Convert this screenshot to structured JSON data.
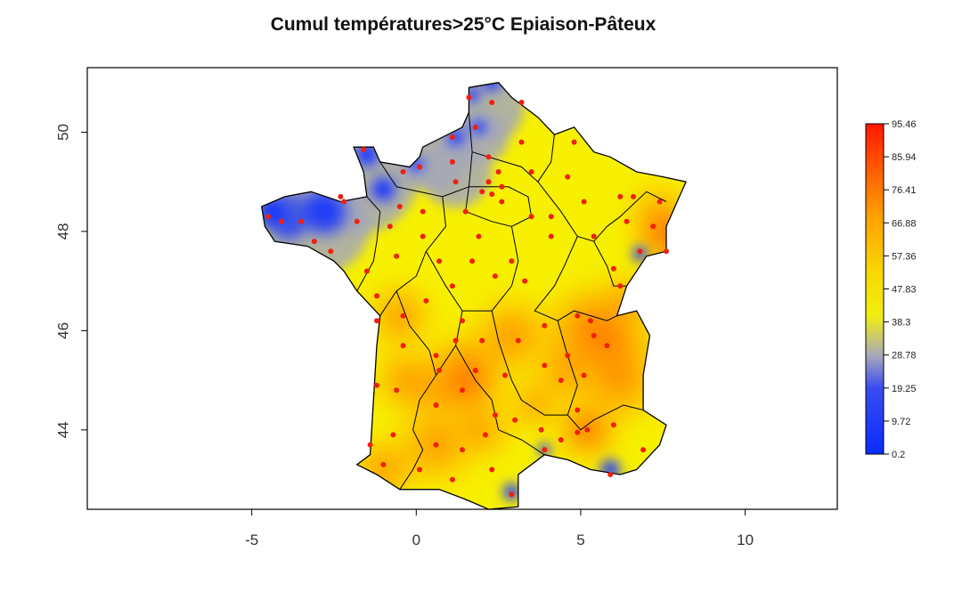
{
  "title": "Cumul températures>25°C Epiaison-Pâteux",
  "axes": {
    "xlim": [
      -10,
      12.8
    ],
    "ylim": [
      42.4,
      51.3
    ],
    "x_ticks": [
      -5,
      0,
      5,
      10
    ],
    "y_ticks": [
      44,
      46,
      48,
      50
    ],
    "x_tick_labels": [
      "-5",
      "0",
      "5",
      "10"
    ],
    "y_tick_labels": [
      "44",
      "46",
      "48",
      "50"
    ]
  },
  "legend": {
    "labels": [
      "95.46",
      "85.94",
      "76.41",
      "66.88",
      "57.36",
      "47.83",
      "38.3",
      "28.78",
      "19.25",
      "9.72",
      "0.2"
    ],
    "colors": {
      "low": "#1030ff",
      "mid_low": "#a0a8c0",
      "mid": "#f5f000",
      "mid_high": "#ff9000",
      "high": "#ff1000"
    }
  },
  "chart_data": {
    "type": "heatmap",
    "title": "Cumul températures>25°C Epiaison-Pâteux",
    "region": "France",
    "value_range": [
      0.2,
      95.46
    ],
    "stations": [
      [
        2.3,
        50.6
      ],
      [
        3.2,
        50.6
      ],
      [
        1.6,
        50.7
      ],
      [
        1.8,
        50.1
      ],
      [
        1.1,
        49.9
      ],
      [
        3.2,
        49.8
      ],
      [
        4.8,
        49.8
      ],
      [
        2.2,
        49.5
      ],
      [
        1.1,
        49.4
      ],
      [
        2.5,
        49.2
      ],
      [
        1.2,
        49.0
      ],
      [
        2.2,
        49.0
      ],
      [
        2.6,
        48.9
      ],
      [
        3.5,
        48.3
      ],
      [
        2.0,
        48.8
      ],
      [
        2.3,
        48.75
      ],
      [
        2.6,
        48.6
      ],
      [
        1.5,
        48.4
      ],
      [
        4.1,
        48.3
      ],
      [
        5.1,
        48.6
      ],
      [
        6.2,
        48.7
      ],
      [
        6.6,
        48.7
      ],
      [
        7.4,
        48.6
      ],
      [
        4.6,
        49.1
      ],
      [
        3.5,
        49.2
      ],
      [
        7.2,
        48.1
      ],
      [
        7.6,
        47.6
      ],
      [
        6.8,
        47.6
      ],
      [
        6.0,
        47.25
      ],
      [
        6.2,
        46.9
      ],
      [
        5.4,
        47.9
      ],
      [
        6.4,
        48.2
      ],
      [
        4.1,
        47.9
      ],
      [
        2.4,
        47.1
      ],
      [
        3.3,
        47.0
      ],
      [
        2.9,
        47.4
      ],
      [
        1.9,
        47.9
      ],
      [
        1.7,
        47.4
      ],
      [
        0.7,
        47.4
      ],
      [
        0.2,
        47.9
      ],
      [
        -0.6,
        47.5
      ],
      [
        -1.5,
        47.2
      ],
      [
        -1.2,
        46.7
      ],
      [
        -0.4,
        46.3
      ],
      [
        0.3,
        46.6
      ],
      [
        1.1,
        46.9
      ],
      [
        -1.8,
        48.2
      ],
      [
        -0.8,
        48.1
      ],
      [
        0.2,
        48.4
      ],
      [
        -0.5,
        48.5
      ],
      [
        -2.3,
        48.7
      ],
      [
        -3.5,
        48.2
      ],
      [
        -4.1,
        48.2
      ],
      [
        -4.5,
        48.3
      ],
      [
        -3.1,
        47.8
      ],
      [
        -2.6,
        47.6
      ],
      [
        -0.4,
        49.2
      ],
      [
        0.1,
        49.3
      ],
      [
        -1.6,
        49.65
      ],
      [
        -2.2,
        48.6
      ],
      [
        -1.2,
        46.2
      ],
      [
        -0.4,
        45.7
      ],
      [
        -1.2,
        44.9
      ],
      [
        -0.6,
        44.8
      ],
      [
        0.7,
        45.2
      ],
      [
        1.2,
        45.8
      ],
      [
        2.0,
        45.8
      ],
      [
        3.1,
        45.8
      ],
      [
        3.9,
        46.1
      ],
      [
        4.9,
        46.3
      ],
      [
        5.3,
        46.2
      ],
      [
        5.4,
        45.9
      ],
      [
        5.8,
        45.7
      ],
      [
        5.1,
        45.1
      ],
      [
        4.6,
        45.5
      ],
      [
        4.4,
        45.0
      ],
      [
        3.9,
        45.3
      ],
      [
        2.7,
        45.1
      ],
      [
        1.8,
        45.2
      ],
      [
        1.4,
        44.8
      ],
      [
        0.6,
        44.5
      ],
      [
        -0.7,
        43.9
      ],
      [
        -1.4,
        43.7
      ],
      [
        -1.0,
        43.3
      ],
      [
        0.1,
        43.2
      ],
      [
        0.6,
        43.7
      ],
      [
        1.4,
        43.6
      ],
      [
        2.1,
        43.9
      ],
      [
        2.4,
        44.3
      ],
      [
        3.0,
        44.2
      ],
      [
        3.8,
        44.0
      ],
      [
        4.4,
        43.8
      ],
      [
        4.9,
        43.95
      ],
      [
        5.2,
        44.0
      ],
      [
        5.9,
        43.1
      ],
      [
        6.9,
        43.6
      ],
      [
        2.3,
        43.2
      ],
      [
        1.1,
        43.0
      ],
      [
        2.9,
        42.7
      ],
      [
        3.9,
        43.6
      ],
      [
        4.9,
        44.4
      ],
      [
        6.0,
        44.1
      ],
      [
        1.4,
        46.2
      ],
      [
        0.6,
        45.5
      ]
    ]
  }
}
